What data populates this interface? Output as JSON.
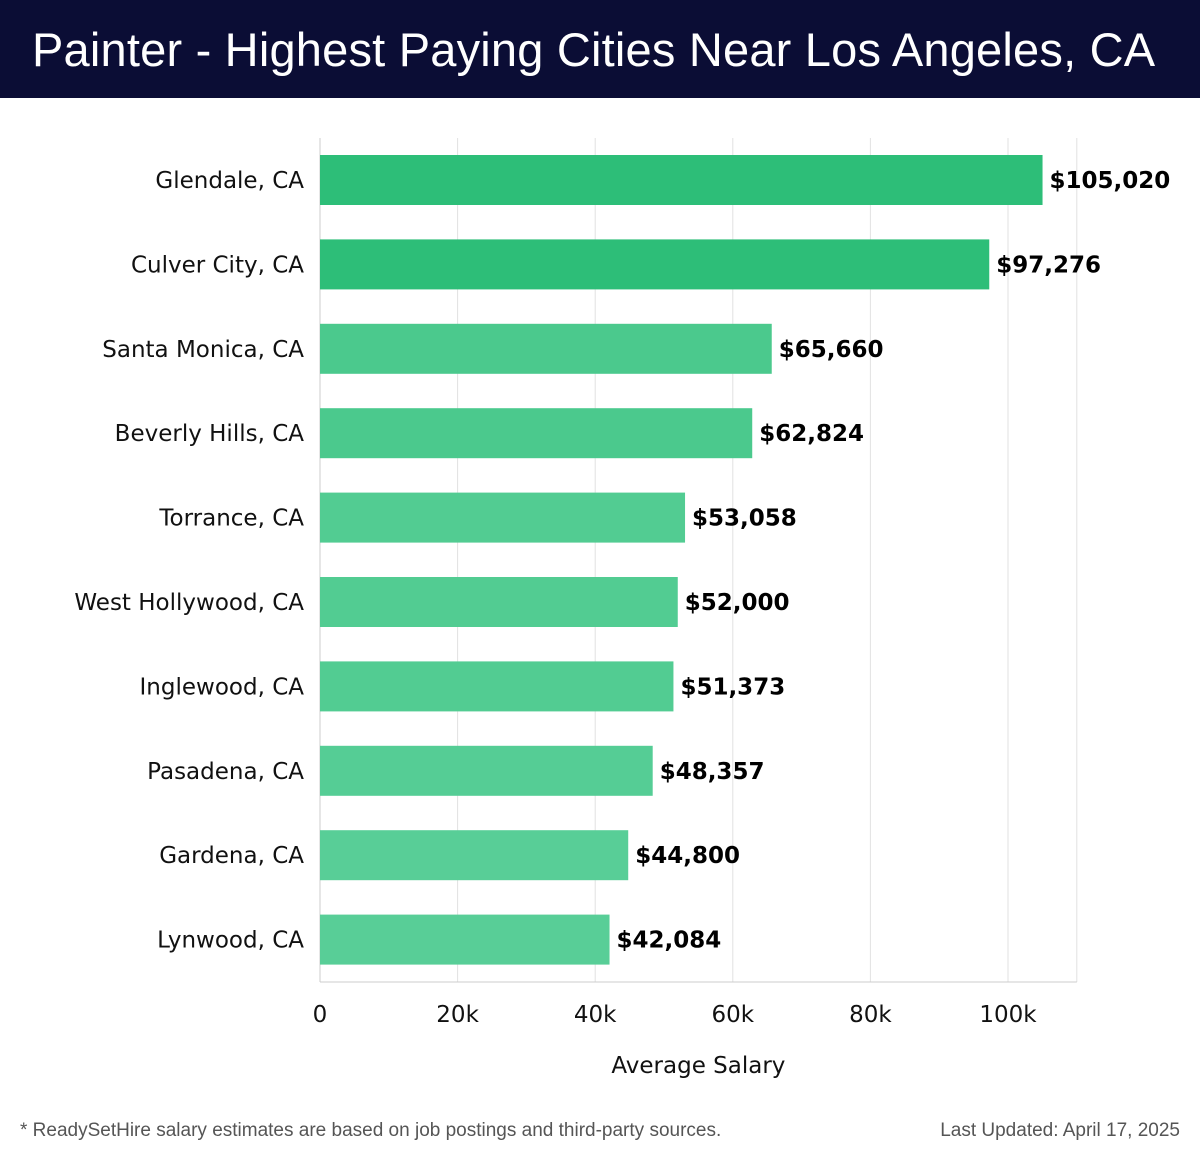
{
  "header": {
    "title": "Painter - Highest Paying Cities Near Los Angeles, CA"
  },
  "chart_data": {
    "type": "bar",
    "orientation": "horizontal",
    "categories": [
      "Glendale, CA",
      "Culver City, CA",
      "Santa Monica, CA",
      "Beverly Hills, CA",
      "Torrance, CA",
      "West Hollywood, CA",
      "Inglewood, CA",
      "Pasadena, CA",
      "Gardena, CA",
      "Lynwood, CA"
    ],
    "values": [
      105020,
      97276,
      65660,
      62824,
      53058,
      52000,
      51373,
      48357,
      44800,
      42084
    ],
    "value_labels": [
      "$105,020",
      "$97,276",
      "$65,660",
      "$62,824",
      "$53,058",
      "$52,000",
      "$51,373",
      "$48,357",
      "$44,800",
      "$42,084"
    ],
    "xlabel": "Average Salary",
    "ylabel": "",
    "xlim": [
      0,
      110000
    ],
    "x_ticks": [
      0,
      20000,
      40000,
      60000,
      80000,
      100000
    ],
    "x_tick_labels": [
      "0",
      "20k",
      "40k",
      "60k",
      "80k",
      "100k"
    ],
    "grid": "vertical",
    "bar_colors": [
      "#2dbe78",
      "#2dbe78",
      "#4bc98d",
      "#4bc98d",
      "#52cc92",
      "#52cc92",
      "#52cc92",
      "#55cd95",
      "#58ce97",
      "#58ce97"
    ]
  },
  "footer": {
    "note": "* ReadySetHire salary estimates are based on job postings and third-party sources.",
    "updated": "Last Updated: April 17, 2025"
  }
}
